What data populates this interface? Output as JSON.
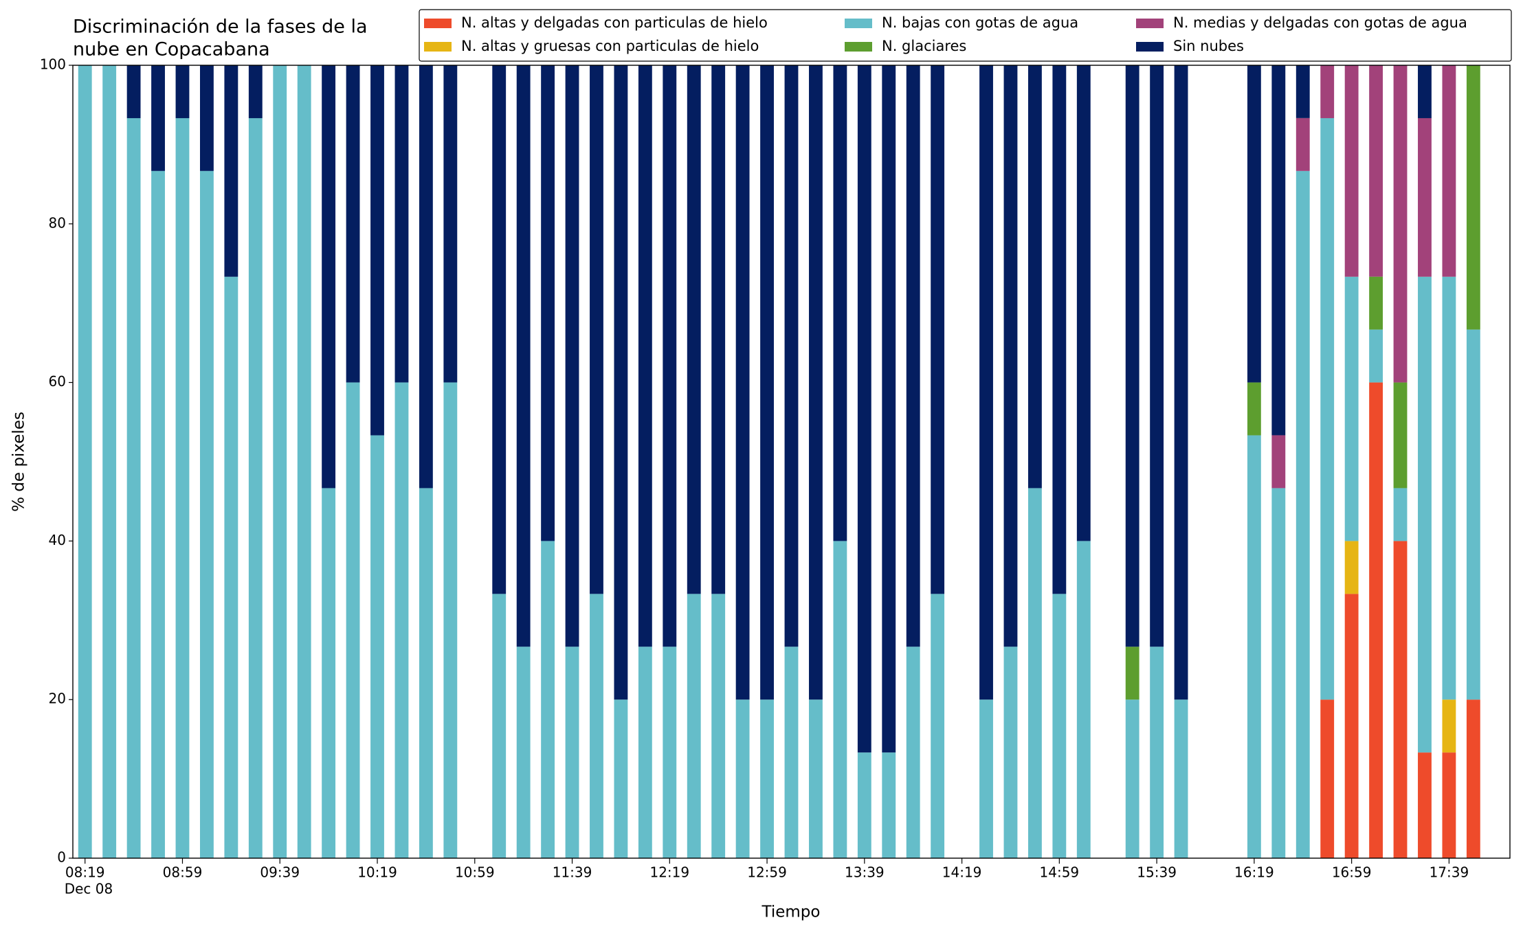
{
  "chart_data": {
    "type": "stacked_bar",
    "title": [
      "Discriminación de la fases de la",
      "nube en Copacabana"
    ],
    "xlabel": "Tiempo",
    "ylabel": "% de pixeles",
    "x_date_label": "Dec 08",
    "x": [
      "08:19",
      "08:29",
      "08:39",
      "08:49",
      "08:59",
      "09:09",
      "09:19",
      "09:29",
      "09:39",
      "09:49",
      "09:59",
      "10:09",
      "10:19",
      "10:29",
      "10:39",
      "10:49",
      "11:09",
      "11:19",
      "11:29",
      "11:39",
      "11:49",
      "11:59",
      "12:09",
      "12:19",
      "12:29",
      "12:39",
      "12:49",
      "12:59",
      "13:09",
      "13:19",
      "13:29",
      "13:39",
      "13:49",
      "13:59",
      "14:09",
      "14:29",
      "14:39",
      "14:49",
      "14:59",
      "15:09",
      "15:29",
      "15:39",
      "15:49",
      "16:19",
      "16:29",
      "16:39",
      "16:49",
      "16:59",
      "17:09",
      "17:19",
      "17:29",
      "17:39",
      "17:49"
    ],
    "xlim": [
      "08:14",
      "18:04"
    ],
    "xticks": [
      "08:19",
      "08:59",
      "09:39",
      "10:19",
      "10:59",
      "11:39",
      "12:19",
      "12:59",
      "13:39",
      "14:19",
      "14:59",
      "15:39",
      "16:19",
      "16:59",
      "17:39"
    ],
    "ylim": [
      0,
      100
    ],
    "yticks": [
      0,
      20,
      40,
      60,
      80,
      100
    ],
    "series": [
      {
        "name": "N. altas y delgadas con particulas de hielo",
        "color": "#ee4b2b",
        "values": [
          0,
          0,
          0,
          0,
          0,
          0,
          0,
          0,
          0,
          0,
          0,
          0,
          0,
          0,
          0,
          0,
          0,
          0,
          0,
          0,
          0,
          0,
          0,
          0,
          0,
          0,
          0,
          0,
          0,
          0,
          0,
          0,
          0,
          0,
          0,
          0,
          0,
          0,
          0,
          0,
          0,
          0,
          0,
          0,
          0,
          0,
          20,
          33.33,
          60,
          40,
          13.33,
          13.33,
          20
        ]
      },
      {
        "name": "N. altas y gruesas con particulas de hielo",
        "color": "#e6b514",
        "values": [
          0,
          0,
          0,
          0,
          0,
          0,
          0,
          0,
          0,
          0,
          0,
          0,
          0,
          0,
          0,
          0,
          0,
          0,
          0,
          0,
          0,
          0,
          0,
          0,
          0,
          0,
          0,
          0,
          0,
          0,
          0,
          0,
          0,
          0,
          0,
          0,
          0,
          0,
          0,
          0,
          0,
          0,
          0,
          0,
          0,
          0,
          0,
          6.67,
          0,
          0,
          0,
          6.67,
          0
        ]
      },
      {
        "name": "N. bajas con gotas de agua",
        "color": "#65bdc9",
        "values": [
          100,
          100,
          93.33,
          86.67,
          93.33,
          86.67,
          73.33,
          93.33,
          100,
          100,
          46.67,
          60,
          53.33,
          60,
          46.67,
          60,
          33.33,
          26.67,
          40,
          26.67,
          33.33,
          20,
          26.67,
          26.67,
          33.33,
          33.33,
          20,
          20,
          26.67,
          20,
          40,
          13.33,
          13.33,
          26.67,
          33.33,
          20,
          26.67,
          46.67,
          33.33,
          40,
          20,
          26.67,
          20,
          53.33,
          46.67,
          86.67,
          73.33,
          33.33,
          6.67,
          6.67,
          60,
          53.33,
          46.67
        ]
      },
      {
        "name": "N. glaciares",
        "color": "#5d9e2f",
        "values": [
          0,
          0,
          0,
          0,
          0,
          0,
          0,
          0,
          0,
          0,
          0,
          0,
          0,
          0,
          0,
          0,
          0,
          0,
          0,
          0,
          0,
          0,
          0,
          0,
          0,
          0,
          0,
          0,
          0,
          0,
          0,
          0,
          0,
          0,
          0,
          0,
          0,
          0,
          0,
          0,
          6.67,
          0,
          0,
          6.67,
          0,
          0,
          0,
          0,
          6.67,
          13.33,
          0,
          0,
          33.33
        ]
      },
      {
        "name": "N. medias y delgadas con gotas de agua",
        "color": "#a2427a",
        "values": [
          0,
          0,
          0,
          0,
          0,
          0,
          0,
          0,
          0,
          0,
          0,
          0,
          0,
          0,
          0,
          0,
          0,
          0,
          0,
          0,
          0,
          0,
          0,
          0,
          0,
          0,
          0,
          0,
          0,
          0,
          0,
          0,
          0,
          0,
          0,
          0,
          0,
          0,
          0,
          0,
          0,
          0,
          0,
          0,
          6.67,
          6.67,
          6.67,
          26.67,
          26.67,
          40,
          20,
          26.67,
          0
        ]
      },
      {
        "name": "Sin nubes",
        "color": "#041e60",
        "values": [
          0,
          0,
          6.67,
          13.33,
          6.67,
          13.33,
          26.67,
          6.67,
          0,
          0,
          53.33,
          40,
          46.67,
          40,
          53.33,
          40,
          66.67,
          73.33,
          60,
          73.33,
          66.67,
          80,
          73.33,
          73.33,
          66.67,
          66.67,
          80,
          80,
          73.33,
          80,
          60,
          86.67,
          86.67,
          73.33,
          66.67,
          80,
          73.33,
          53.33,
          66.67,
          60,
          73.33,
          73.33,
          80,
          40,
          46.67,
          6.67,
          0,
          0,
          0,
          0,
          6.67,
          0,
          0
        ]
      }
    ],
    "legend": "upper right"
  }
}
